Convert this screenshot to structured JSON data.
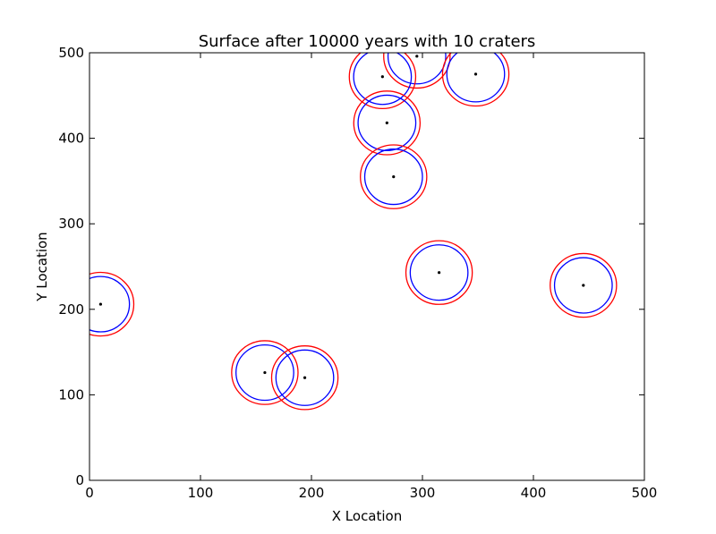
{
  "chart_data": {
    "type": "scatter",
    "title": "Surface after 10000 years with 10 craters",
    "xlabel": "X Location",
    "ylabel": "Y Location",
    "xlim": [
      0,
      500
    ],
    "ylim": [
      0,
      500
    ],
    "xticks": [
      "0",
      "100",
      "200",
      "300",
      "400",
      "500"
    ],
    "yticks": [
      "0",
      "100",
      "200",
      "300",
      "400",
      "500"
    ],
    "grid": false,
    "colors": {
      "center": "#000000",
      "inner_rim": "#0000ff",
      "outer_rim": "#ff0000"
    },
    "craters": [
      {
        "x": 295,
        "y": 496,
        "radius": 26
      },
      {
        "x": 264,
        "y": 472,
        "radius": 26
      },
      {
        "x": 348,
        "y": 475,
        "radius": 26
      },
      {
        "x": 268,
        "y": 418,
        "radius": 26
      },
      {
        "x": 274,
        "y": 355,
        "radius": 26
      },
      {
        "x": 315,
        "y": 243,
        "radius": 26
      },
      {
        "x": 445,
        "y": 228,
        "radius": 26
      },
      {
        "x": 10,
        "y": 206,
        "radius": 26
      },
      {
        "x": 158,
        "y": 126,
        "radius": 26
      },
      {
        "x": 194,
        "y": 120,
        "radius": 26
      }
    ],
    "outer_radius_factor": 1.15,
    "radius_aspect_y": 0.96
  }
}
